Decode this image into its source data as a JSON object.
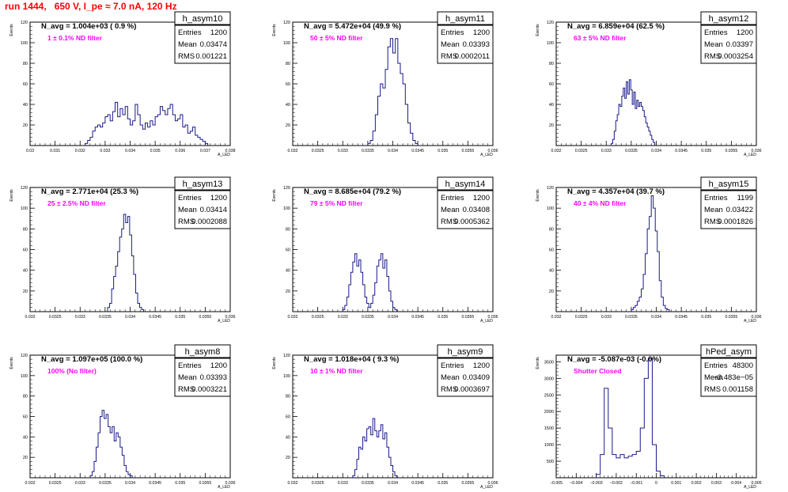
{
  "canvas_title": "run 1444,   650 V, I_pe ≈ 7.0 nA, 120 Hz",
  "colors": {
    "hist": "#1a1a8c",
    "annotation": "#ff00ff",
    "title": "#ff0000",
    "text": "#000000"
  },
  "chart_data": [
    {
      "type": "histogram",
      "title": "h_asym10",
      "header": "N_avg = 1.004e+03 ( 0.9 %)",
      "annotation": "1 ± 0.1% ND filter",
      "stats": [
        [
          "Entries",
          "1200"
        ],
        [
          "Mean",
          "0.03474"
        ],
        [
          "RMS",
          "0.001221"
        ]
      ],
      "xlabel": "A_LED",
      "ylabel": "Events",
      "xlim": [
        0.03,
        0.038
      ],
      "ylim": [
        0,
        120
      ],
      "xticks": [
        0.03,
        0.031,
        0.032,
        0.033,
        0.034,
        0.035,
        0.036,
        0.037,
        0.038
      ],
      "xtick_labels": [
        "0.03",
        "0.031",
        "0.032",
        "0.033",
        "0.034",
        "0.035",
        "0.036",
        "0.037",
        "0.038"
      ],
      "yticks": [
        0,
        20,
        40,
        60,
        80,
        100,
        120
      ],
      "ytick_labels": [
        "",
        "20",
        "40",
        "60",
        "80",
        "100",
        "120"
      ],
      "bin_start": 0.0322,
      "bin_width": 0.0001,
      "values": [
        2,
        5,
        8,
        14,
        18,
        20,
        18,
        22,
        28,
        30,
        24,
        33,
        42,
        28,
        36,
        30,
        38,
        26,
        20,
        24,
        40,
        30,
        20,
        16,
        22,
        18,
        24,
        20,
        28,
        30,
        38,
        34,
        30,
        36,
        40,
        30,
        24,
        26,
        30,
        18,
        20,
        12,
        14,
        18,
        10,
        8,
        6,
        4,
        2
      ]
    },
    {
      "type": "histogram",
      "title": "h_asym11",
      "header": "N_avg = 5.472e+04 (49.9 %)",
      "annotation": "50 ± 5% ND filter",
      "stats": [
        [
          "Entries",
          "1200"
        ],
        [
          "Mean",
          "0.03393"
        ],
        [
          "RMS",
          "0.0002011"
        ]
      ],
      "xlabel": "A_LED",
      "ylabel": "Events",
      "xlim": [
        0.032,
        0.036
      ],
      "ylim": [
        0,
        120
      ],
      "xticks": [
        0.032,
        0.0325,
        0.033,
        0.0335,
        0.034,
        0.0345,
        0.035,
        0.0355,
        0.036
      ],
      "xtick_labels": [
        "0.032",
        "0.0325",
        "0.033",
        "0.0335",
        "0.034",
        "0.0345",
        "0.035",
        "0.0355",
        "0.036"
      ],
      "yticks": [
        0,
        20,
        40,
        60,
        80,
        100,
        120
      ],
      "ytick_labels": [
        "",
        "20",
        "40",
        "60",
        "80",
        "100",
        "120"
      ],
      "bin_start": 0.0335,
      "bin_width": 5e-05,
      "values": [
        2,
        5,
        14,
        30,
        48,
        60,
        56,
        74,
        96,
        104,
        90,
        104,
        80,
        70,
        60,
        40,
        22,
        12,
        5,
        2
      ]
    },
    {
      "type": "histogram",
      "title": "h_asym12",
      "header": "N_avg = 6.859e+04 (62.5 %)",
      "annotation": "63 ± 5% ND filter",
      "stats": [
        [
          "Entries",
          "1200"
        ],
        [
          "Mean",
          "0.03397"
        ],
        [
          "RMS",
          "0.0003254"
        ]
      ],
      "xlabel": "A_LED",
      "ylabel": "Events",
      "xlim": [
        0.032,
        0.036
      ],
      "ylim": [
        0,
        120
      ],
      "xticks": [
        0.032,
        0.0325,
        0.033,
        0.0335,
        0.034,
        0.0345,
        0.035,
        0.0355,
        0.036
      ],
      "xtick_labels": [
        "0.032",
        "0.0325",
        "0.033",
        "0.0335",
        "0.034",
        "0.0345",
        "0.035",
        "0.0355",
        "0.036"
      ],
      "yticks": [
        0,
        20,
        40,
        60,
        80,
        100,
        120
      ],
      "ytick_labels": [
        "",
        "20",
        "40",
        "60",
        "80",
        "100",
        "120"
      ],
      "bin_start": 0.0331,
      "bin_width": 3e-05,
      "values": [
        2,
        6,
        14,
        24,
        30,
        40,
        38,
        48,
        56,
        46,
        62,
        50,
        64,
        54,
        40,
        52,
        36,
        44,
        38,
        42,
        38,
        34,
        28,
        22,
        18,
        14,
        10,
        6,
        3
      ]
    },
    {
      "type": "histogram",
      "title": "h_asym13",
      "header": "N_avg = 2.771e+04 (25.3 %)",
      "annotation": "25 ± 2.5% ND filter",
      "stats": [
        [
          "Entries",
          "1200"
        ],
        [
          "Mean",
          "0.03414"
        ],
        [
          "RMS",
          "0.0002088"
        ]
      ],
      "xlabel": "A_LED",
      "ylabel": "Events",
      "xlim": [
        0.032,
        0.036
      ],
      "ylim": [
        0,
        120
      ],
      "xticks": [
        0.032,
        0.0325,
        0.033,
        0.0335,
        0.034,
        0.0345,
        0.035,
        0.0355,
        0.036
      ],
      "xtick_labels": [
        "0.032",
        "0.0325",
        "0.033",
        "0.0335",
        "0.034",
        "0.0345",
        "0.035",
        "0.0355",
        "0.036"
      ],
      "yticks": [
        0,
        20,
        40,
        60,
        80,
        100,
        120
      ],
      "ytick_labels": [
        "",
        "20",
        "40",
        "60",
        "80",
        "100",
        "120"
      ],
      "bin_start": 0.03355,
      "bin_width": 4e-05,
      "values": [
        4,
        8,
        22,
        34,
        44,
        58,
        72,
        80,
        94,
        86,
        92,
        74,
        54,
        36,
        18,
        8,
        4,
        2
      ]
    },
    {
      "type": "histogram",
      "title": "h_asym14",
      "header": "N_avg = 8.685e+04 (79.2 %)",
      "annotation": "79 ± 5% ND filter",
      "stats": [
        [
          "Entries",
          "1200"
        ],
        [
          "Mean",
          "0.03408"
        ],
        [
          "RMS",
          "0.0005362"
        ]
      ],
      "xlabel": "A_LED",
      "ylabel": "Events",
      "xlim": [
        0.032,
        0.036
      ],
      "ylim": [
        0,
        120
      ],
      "xticks": [
        0.032,
        0.0325,
        0.033,
        0.0335,
        0.034,
        0.0345,
        0.035,
        0.0355,
        0.036
      ],
      "xtick_labels": [
        "0.032",
        "0.0325",
        "0.033",
        "0.0335",
        "0.034",
        "0.0345",
        "0.035",
        "0.0355",
        "0.036"
      ],
      "yticks": [
        0,
        20,
        40,
        60,
        80,
        100,
        120
      ],
      "ytick_labels": [
        "",
        "20",
        "40",
        "60",
        "80",
        "100",
        "120"
      ],
      "bin_start": 0.033,
      "bin_width": 4e-05,
      "values": [
        2,
        6,
        14,
        26,
        38,
        48,
        56,
        44,
        50,
        38,
        26,
        14,
        8,
        4,
        8,
        16,
        28,
        44,
        50,
        56,
        42,
        50,
        34,
        20,
        10,
        4,
        2
      ]
    },
    {
      "type": "histogram",
      "title": "h_asym15",
      "header": "N_avg = 4.357e+04 (39.7 %)",
      "annotation": "40 ± 4% ND filter",
      "stats": [
        [
          "Entries",
          "1199"
        ],
        [
          "Mean",
          "0.03422"
        ],
        [
          "RMS",
          "0.0001826"
        ]
      ],
      "xlabel": "A_LED",
      "ylabel": "Events",
      "xlim": [
        0.032,
        0.036
      ],
      "ylim": [
        0,
        120
      ],
      "xticks": [
        0.032,
        0.0325,
        0.033,
        0.0335,
        0.034,
        0.0345,
        0.035,
        0.0355,
        0.036
      ],
      "xtick_labels": [
        "0.032",
        "0.0325",
        "0.033",
        "0.0335",
        "0.034",
        "0.0345",
        "0.035",
        "0.0355",
        "0.036"
      ],
      "yticks": [
        0,
        20,
        40,
        60,
        80,
        100,
        120
      ],
      "ytick_labels": [
        "",
        "20",
        "40",
        "60",
        "80",
        "100",
        "120"
      ],
      "bin_start": 0.0335,
      "bin_width": 4e-05,
      "values": [
        2,
        4,
        6,
        10,
        14,
        22,
        36,
        56,
        80,
        92,
        112,
        100,
        78,
        58,
        30,
        14,
        6,
        3,
        2
      ]
    },
    {
      "type": "histogram",
      "title": "h_asym8",
      "header": "N_avg = 1.097e+05 (100.0 %)",
      "annotation": "100% (No filter)",
      "stats": [
        [
          "Entries",
          "1200"
        ],
        [
          "Mean",
          "0.03393"
        ],
        [
          "RMS",
          "0.0003221"
        ]
      ],
      "xlabel": "A_LED",
      "ylabel": "Events",
      "xlim": [
        0.032,
        0.036
      ],
      "ylim": [
        0,
        120
      ],
      "xticks": [
        0.032,
        0.0325,
        0.033,
        0.0335,
        0.034,
        0.0345,
        0.035,
        0.0355,
        0.036
      ],
      "xtick_labels": [
        "0.032",
        "0.0325",
        "0.033",
        "0.0335",
        "0.034",
        "0.0345",
        "0.035",
        "0.0355",
        "0.036"
      ],
      "yticks": [
        0,
        20,
        40,
        60,
        80,
        100,
        120
      ],
      "ytick_labels": [
        "",
        "20",
        "40",
        "60",
        "80",
        "100",
        "120"
      ],
      "bin_start": 0.0332,
      "bin_width": 4e-05,
      "values": [
        2,
        6,
        16,
        30,
        44,
        60,
        66,
        58,
        62,
        50,
        44,
        50,
        36,
        44,
        40,
        30,
        22,
        12,
        6,
        3,
        2
      ]
    },
    {
      "type": "histogram",
      "title": "h_asym9",
      "header": "N_avg = 1.018e+04 ( 9.3 %)",
      "annotation": "10 ± 1% ND filter",
      "stats": [
        [
          "Entries",
          "1200"
        ],
        [
          "Mean",
          "0.03409"
        ],
        [
          "RMS",
          "0.0003697"
        ]
      ],
      "xlabel": "A_LED",
      "ylabel": "Events",
      "xlim": [
        0.032,
        0.036
      ],
      "ylim": [
        0,
        120
      ],
      "xticks": [
        0.032,
        0.0325,
        0.033,
        0.0335,
        0.034,
        0.0345,
        0.035,
        0.0355,
        0.036
      ],
      "xtick_labels": [
        "0.032",
        "0.0325",
        "0.033",
        "0.0335",
        "0.034",
        "0.0345",
        "0.035",
        "0.0355",
        "0.036"
      ],
      "yticks": [
        0,
        20,
        40,
        60,
        80,
        100,
        120
      ],
      "ytick_labels": [
        "",
        "20",
        "40",
        "60",
        "80",
        "100",
        "120"
      ],
      "bin_start": 0.0332,
      "bin_width": 4e-05,
      "values": [
        2,
        8,
        18,
        30,
        28,
        40,
        36,
        48,
        50,
        42,
        58,
        46,
        40,
        46,
        52,
        38,
        44,
        30,
        20,
        12,
        6,
        2
      ]
    },
    {
      "type": "histogram",
      "title": "hPed_asym",
      "header": "N_avg = -5.087e-03 (-0.0%)",
      "annotation": "Shutter Closed",
      "stats": [
        [
          "Entries",
          "48300"
        ],
        [
          "Mean",
          "−3.483e−05"
        ],
        [
          "RMS",
          "0.001158"
        ]
      ],
      "xlabel": "A_LED",
      "ylabel": "Events",
      "xlim": [
        -0.005,
        0.005
      ],
      "ylim": [
        0,
        3700
      ],
      "xticks": [
        -0.005,
        -0.004,
        -0.003,
        -0.002,
        -0.001,
        0,
        0.001,
        0.002,
        0.003,
        0.004,
        0.005
      ],
      "xtick_labels": [
        "−0.005",
        "−0.004",
        "−0.003",
        "−0.002",
        "−0.001",
        "0",
        "0.001",
        "0.002",
        "0.003",
        "0.004",
        "0.005"
      ],
      "yticks": [
        0,
        500,
        1000,
        1500,
        2000,
        2500,
        3000,
        3500
      ],
      "ytick_labels": [
        "",
        "500",
        "1000",
        "1500",
        "2000",
        "2500",
        "3000",
        "3500"
      ],
      "bin_start": -0.003,
      "bin_width": 0.0002,
      "values": [
        100,
        700,
        2700,
        1500,
        700,
        600,
        700,
        600,
        650,
        700,
        800,
        1500,
        3000,
        3600,
        1000,
        200,
        60
      ]
    }
  ]
}
